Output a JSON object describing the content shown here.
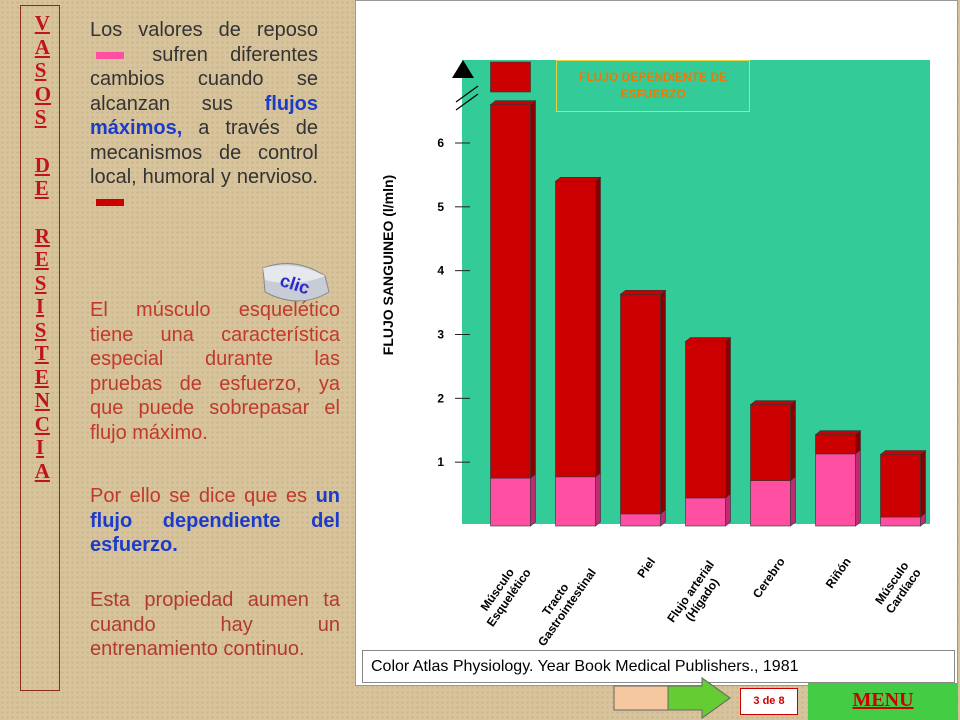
{
  "sidebar": {
    "words": [
      "VASOS",
      "DE",
      "RESISTENCIA"
    ]
  },
  "paragraphs": [
    {
      "color": "#333333",
      "runs": [
        {
          "text": "Los valores de reposo"
        },
        {
          "text": " sufren diferentes cambios cuando se alcanzan sus "
        },
        {
          "text": "flujos máximos,",
          "emphasis": true
        },
        {
          "text": " a través de mecanismos de control local, humoral y nervioso."
        }
      ]
    },
    {
      "color": "#c0392b",
      "runs": [
        {
          "text": "El músculo esquelético tiene una característica especial durante las pruebas de esfuerzo, ya que puede sobrepasar el flujo máximo."
        }
      ]
    },
    {
      "color": "#c0392b",
      "runs": [
        {
          "text": "Por ello se dice que es "
        },
        {
          "text": "un flujo dependiente del esfuerzo.",
          "emphasis": true
        }
      ]
    },
    {
      "color": "#b03a2e",
      "runs": [
        {
          "text": "Esta propiedad aumen ta cuando hay un entrenamiento continuo."
        }
      ]
    }
  ],
  "clic": "clic",
  "chart_data": {
    "type": "bar",
    "stacked": true,
    "annotation": "FLUJO DEPENDIENTE DE ESFUERZO",
    "y_label": "FLUJO SANGUINEO (l/mln)",
    "categories": [
      "Músculo\nEsquelético",
      "Tracto\nGastrointestinal",
      "Piel",
      "Flujo arterial\n(Hígado)",
      "Cerebro",
      "Riñón",
      "Músculo\nCardíaco"
    ],
    "series": [
      {
        "color": "#ff4fa3",
        "values": [
          0.75,
          0.77,
          0.19,
          0.44,
          0.71,
          1.13,
          0.14
        ]
      },
      {
        "color": "#cc0000",
        "values": [
          5.85,
          4.63,
          3.44,
          2.45,
          1.19,
          0.3,
          0.98
        ]
      }
    ],
    "ylim": [
      0,
      7.3
    ],
    "yticks": [
      1,
      2,
      3,
      4,
      5,
      6
    ],
    "background": "#33cc99"
  },
  "citation": "Color Atlas Physiology. Year Book Medical Publishers., 1981",
  "nav": {
    "page": "3 de 8",
    "menu": "MENU"
  }
}
